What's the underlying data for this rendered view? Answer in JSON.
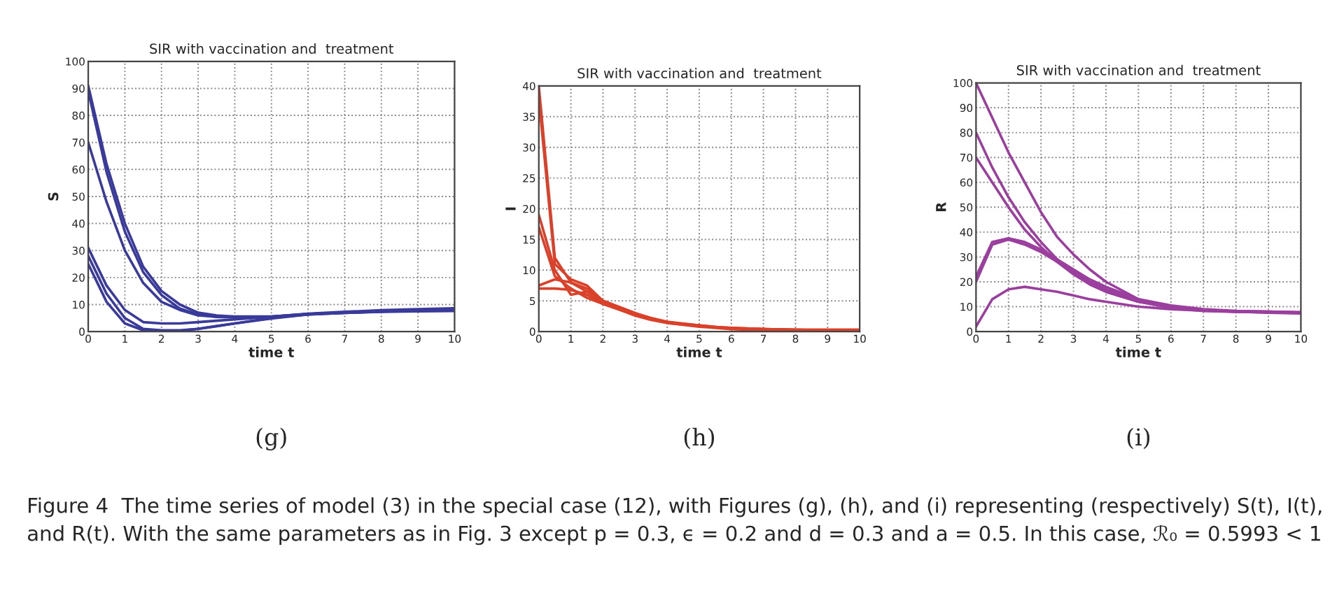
{
  "chart_data": [
    {
      "type": "line",
      "title": "SIR with vaccination and  treatment",
      "xlabel": "time t",
      "ylabel": "S",
      "x": [
        0,
        0.5,
        1,
        1.5,
        2,
        2.5,
        3,
        3.5,
        4,
        5,
        6,
        7,
        8,
        9,
        10
      ],
      "xlim": [
        0,
        10
      ],
      "xticks": [
        0,
        1,
        2,
        3,
        4,
        5,
        6,
        7,
        8,
        9,
        10
      ],
      "ylim": [
        0,
        100
      ],
      "yticks": [
        0,
        10,
        20,
        30,
        40,
        50,
        60,
        70,
        80,
        90,
        100
      ],
      "grid": true,
      "marker": "none",
      "line_style": "solid",
      "annotations": [
        "(g)",
        "Figure 4  The time series of model (3) in the special case (12), with Figures (g), (h), and (i) representing (respectively) S(t), I(t), and R(t). With the same parameters as in Fig. 3 except p = 0.3, ϵ = 0.2 and d = 0.3 and a = 0.5. In this case, ℛ₀ = 0.5993 < 1"
      ],
      "series": [
        {
          "color": "#3a3a9a",
          "values": [
            91,
            62,
            40,
            24,
            15,
            10,
            7,
            6,
            5.5,
            5.5,
            6.6,
            7.3,
            7.9,
            8.3,
            8.6
          ]
        },
        {
          "color": "#3a3a9a",
          "values": [
            89,
            59,
            37,
            22,
            13.5,
            8.5,
            6.3,
            5.4,
            5.2,
            5.3,
            6.3,
            6.9,
            7.3,
            7.5,
            7.6
          ]
        },
        {
          "color": "#3a3a9a",
          "values": [
            70,
            48,
            30,
            18,
            11,
            8,
            6,
            5.5,
            5.6,
            5.6,
            6.5,
            7.1,
            7.6,
            8,
            8.1
          ]
        },
        {
          "color": "#3a3a9a",
          "values": [
            31,
            17,
            8,
            3.5,
            3,
            3,
            3.5,
            4,
            4.5,
            5.5,
            6.5,
            7,
            7.4,
            7.7,
            7.8
          ]
        },
        {
          "color": "#3a3a9a",
          "values": [
            28,
            14,
            5,
            1,
            0.5,
            0.5,
            1,
            2,
            3,
            5,
            6.4,
            7.1,
            7.6,
            8,
            8.2
          ]
        },
        {
          "color": "#3a3a9a",
          "values": [
            25,
            11,
            3,
            0.5,
            0.2,
            0.3,
            1,
            2,
            3,
            4.8,
            6.3,
            6.9,
            7.4,
            7.8,
            8
          ]
        }
      ]
    },
    {
      "type": "line",
      "title": "SIR with vaccination and  treatment",
      "xlabel": "time t",
      "ylabel": "I",
      "x": [
        0,
        0.5,
        1,
        1.5,
        2,
        2.5,
        3,
        3.5,
        4,
        5,
        6,
        7,
        8,
        9,
        10
      ],
      "xlim": [
        0,
        10
      ],
      "xticks": [
        0,
        1,
        2,
        3,
        4,
        5,
        6,
        7,
        8,
        9,
        10
      ],
      "ylim": [
        0,
        40
      ],
      "yticks": [
        0,
        5,
        10,
        15,
        20,
        25,
        30,
        35,
        40
      ],
      "grid": true,
      "marker": "none",
      "line_style": "solid",
      "annotations": [
        "(h)"
      ],
      "series": [
        {
          "color": "#d9412a",
          "values": [
            40,
            12,
            8,
            7,
            5,
            4,
            3,
            2,
            1.5,
            1,
            0.5,
            0.3,
            0.2,
            0.2,
            0.1
          ]
        },
        {
          "color": "#d9412a",
          "values": [
            38,
            11,
            8.5,
            7.5,
            5,
            4,
            3,
            2.2,
            1.6,
            1,
            0.5,
            0.4,
            0.3,
            0.2,
            0.2
          ]
        },
        {
          "color": "#d9412a",
          "values": [
            19,
            10,
            6,
            6.5,
            5,
            3.8,
            2.8,
            2,
            1.5,
            0.9,
            0.6,
            0.4,
            0.3,
            0.3,
            0.3
          ]
        },
        {
          "color": "#d9412a",
          "values": [
            17,
            9,
            7,
            5.5,
            4.5,
            3.6,
            2.7,
            2,
            1.4,
            0.8,
            0.4,
            0.2,
            0.1,
            0.1,
            0.1
          ]
        },
        {
          "color": "#d9412a",
          "values": [
            7.5,
            8.5,
            8,
            6.5,
            4.8,
            3.8,
            2.8,
            2,
            1.5,
            0.9,
            0.5,
            0.3,
            0.3,
            0.2,
            0.2
          ]
        },
        {
          "color": "#d9412a",
          "values": [
            7,
            7,
            6.8,
            6,
            4.5,
            3.6,
            2.6,
            1.9,
            1.4,
            0.9,
            0.6,
            0.4,
            0.3,
            0.3,
            0.3
          ]
        }
      ]
    },
    {
      "type": "line",
      "title": "SIR with vaccination and  treatment",
      "xlabel": "time t",
      "ylabel": "R",
      "x": [
        0,
        0.5,
        1,
        1.5,
        2,
        2.5,
        3,
        3.5,
        4,
        5,
        6,
        7,
        8,
        9,
        10
      ],
      "xlim": [
        0,
        10
      ],
      "xticks": [
        0,
        1,
        2,
        3,
        4,
        5,
        6,
        7,
        8,
        9,
        10
      ],
      "ylim": [
        0,
        100
      ],
      "yticks": [
        0,
        10,
        20,
        30,
        40,
        50,
        60,
        70,
        80,
        90,
        100
      ],
      "grid": true,
      "marker": "none",
      "line_style": "solid",
      "annotations": [
        "(i)"
      ],
      "series": [
        {
          "color": "#9b3f9f",
          "values": [
            100,
            86,
            72,
            60,
            48,
            38,
            31,
            25,
            20,
            13,
            10,
            8.7,
            8.2,
            8,
            7.8
          ]
        },
        {
          "color": "#9b3f9f",
          "values": [
            80,
            66,
            54,
            44,
            36,
            29,
            24,
            19,
            16,
            12,
            10,
            8.5,
            8,
            7.8,
            7.5
          ]
        },
        {
          "color": "#9b3f9f",
          "values": [
            70,
            60,
            50,
            41,
            34,
            28,
            23,
            19,
            16,
            12,
            9.5,
            8.3,
            7.9,
            7.7,
            7.4
          ]
        },
        {
          "color": "#9b3f9f",
          "values": [
            22,
            36,
            37.5,
            36,
            33,
            29,
            25,
            21,
            18,
            13,
            10.5,
            9,
            8.3,
            8,
            7.6
          ]
        },
        {
          "color": "#9b3f9f",
          "values": [
            20,
            35,
            37,
            35,
            32,
            28,
            24,
            20,
            17,
            12.5,
            10,
            8.8,
            8.1,
            7.9,
            7.7
          ]
        },
        {
          "color": "#9b3f9f",
          "values": [
            2,
            13,
            17,
            18,
            17,
            16,
            14.5,
            13,
            12,
            10,
            9,
            8.4,
            8,
            7.6,
            7.3
          ]
        }
      ]
    }
  ]
}
